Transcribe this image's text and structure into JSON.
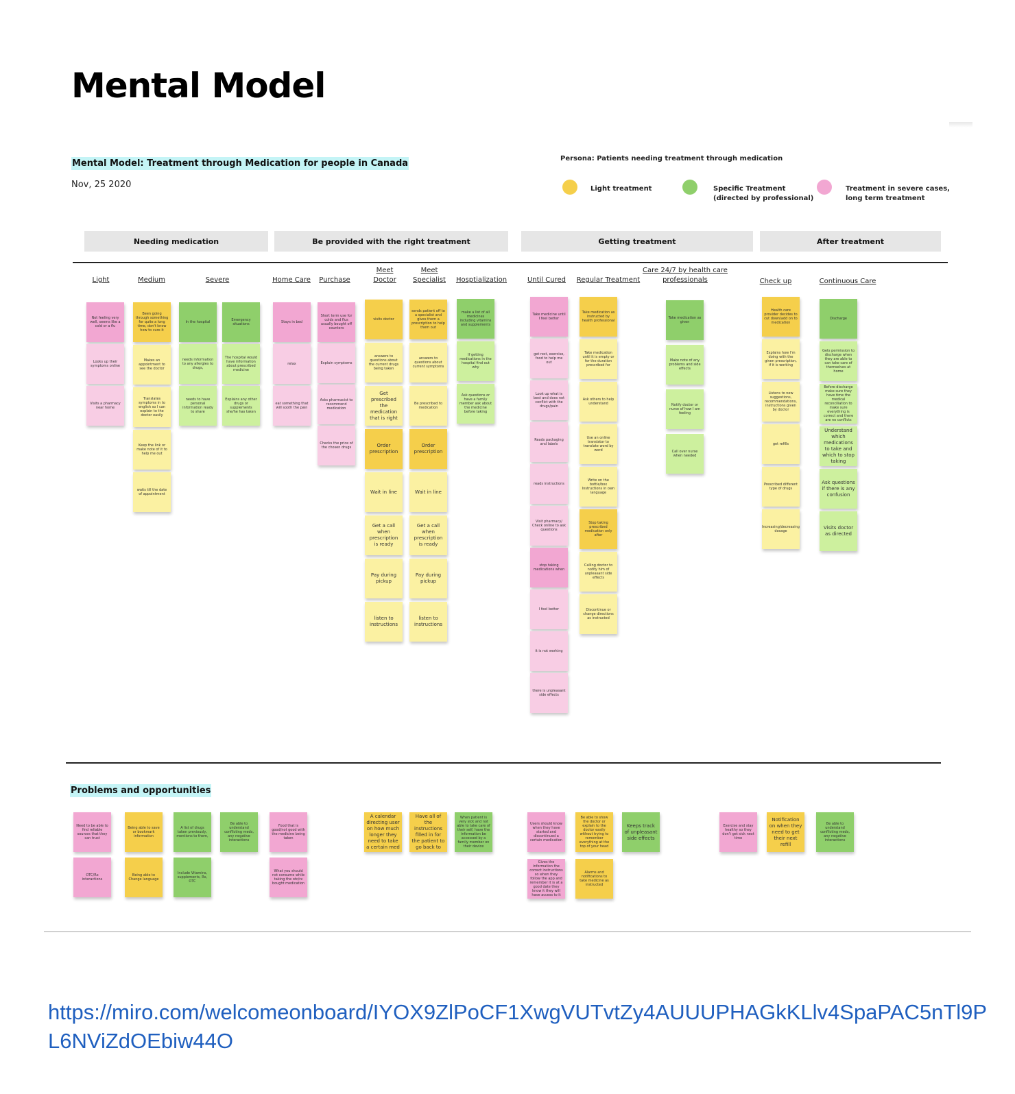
{
  "page_title": "Mental Model",
  "board": {
    "title": "Mental Model: Treatment through Medication for people in Canada",
    "date": "Nov, 25 2020",
    "persona": "Persona: Patients needing treatment through medication",
    "legend": [
      {
        "label": "Light treatment",
        "color": "#f5cf4b"
      },
      {
        "label": "Specific Treatment\n(directed by professional)",
        "color": "#8fcf6b"
      },
      {
        "label": "Treatment in severe cases,\nlong term treatment",
        "color": "#f2a7d2"
      }
    ],
    "phases": [
      "Needing medication",
      "Be provided with the right treatment",
      "Getting treatment",
      "After treatment"
    ],
    "columns": [
      {
        "label": "Light",
        "notes": [
          {
            "c": "pink",
            "t": "Not feeling very well, seems like a cold or a flu"
          },
          {
            "c": "lpink",
            "t": "Looks up their symptoms online"
          },
          {
            "c": "lpink",
            "t": "Visits a pharmacy near home"
          }
        ]
      },
      {
        "label": "Medium",
        "notes": [
          {
            "c": "yellow",
            "t": "Been going through something for quite a long time, don't know how to cure it"
          },
          {
            "c": "lyellow",
            "t": "Makes an appointment to see the doctor"
          },
          {
            "c": "lyellow",
            "t": "Translates symptoms in to english so I can explain to the doctor easily"
          },
          {
            "c": "lyellow",
            "t": "Keep the link or make note of it to help me out"
          },
          {
            "c": "lyellow",
            "t": "waits till the date of appointment"
          }
        ]
      },
      {
        "label": "Severe",
        "notes": [
          {
            "c": "green",
            "t": "In the hospital"
          },
          {
            "c": "lgreen",
            "t": "needs information to any allergies to drugs,"
          },
          {
            "c": "lgreen",
            "t": "needs to have personal information ready to share"
          }
        ]
      },
      {
        "label": "",
        "notes": [
          {
            "c": "green",
            "t": "Emergency situations"
          },
          {
            "c": "lgreen",
            "t": "The hospital would have information about prescribed medicine"
          },
          {
            "c": "lgreen",
            "t": "Explains any other drugs or supplements she/he has taken"
          }
        ]
      },
      {
        "label": "Home Care",
        "notes": [
          {
            "c": "pink",
            "t": "Stays in bed"
          },
          {
            "c": "lpink",
            "t": "relax"
          },
          {
            "c": "lpink",
            "t": "eat something that will sooth the pain"
          }
        ]
      },
      {
        "label": "Purchase",
        "notes": [
          {
            "c": "pink",
            "t": "Short term use for colds and flus usually bought off counters"
          },
          {
            "c": "lpink",
            "t": "Explain symptoms"
          },
          {
            "c": "lpink",
            "t": "Asks pharmacist to recommend medication"
          },
          {
            "c": "lpink",
            "t": "Checks the price of the chosen drugs"
          }
        ]
      },
      {
        "label": "Meet\nDoctor",
        "notes": [
          {
            "c": "yellow",
            "t": "visits doctor"
          },
          {
            "c": "lyellow",
            "t": "answers to questions about the current drugs being taken"
          },
          {
            "c": "lyellow",
            "t": "Get prescribed the medication that is right",
            "big": true
          },
          {
            "c": "yellow",
            "t": "Order prescription",
            "big": true
          },
          {
            "c": "lyellow",
            "t": "Wait in line",
            "big": true
          },
          {
            "c": "lyellow",
            "t": "Get a call when prescription is ready",
            "big": true
          },
          {
            "c": "lyellow",
            "t": "Pay during pickup",
            "big": true
          },
          {
            "c": "lyellow",
            "t": "listen to instructions",
            "big": true
          }
        ]
      },
      {
        "label": "Meet\nSpecialist",
        "notes": [
          {
            "c": "yellow",
            "t": "sends patient off to a specialist and gives them a prescription to help them out"
          },
          {
            "c": "lyellow",
            "t": "answers to questions about current symptoms"
          },
          {
            "c": "lyellow",
            "t": "Be prescribed to medication"
          },
          {
            "c": "yellow",
            "t": "Order prescription",
            "big": true
          },
          {
            "c": "lyellow",
            "t": "Wait in line",
            "big": true
          },
          {
            "c": "lyellow",
            "t": "Get a call when prescription is ready",
            "big": true
          },
          {
            "c": "lyellow",
            "t": "Pay during pickup",
            "big": true
          },
          {
            "c": "lyellow",
            "t": "listen to instructions",
            "big": true
          }
        ]
      },
      {
        "label": "Hosptialization",
        "notes": [
          {
            "c": "green",
            "t": "make a list of all medicines including vitamins and supplements"
          },
          {
            "c": "lgreen",
            "t": "If getting medications in the hospital find out why"
          },
          {
            "c": "lgreen",
            "t": "Ask questions or have a family member ask about the medicine before taking"
          }
        ]
      },
      {
        "label": "Until Cured",
        "notes": [
          {
            "c": "pink",
            "t": "Take medicine until I feel better"
          },
          {
            "c": "lpink",
            "t": "get rest, exercise, food to help me out"
          },
          {
            "c": "lpink",
            "t": "Look up what is best and does not conflict with the drugs/pain"
          },
          {
            "c": "lpink",
            "t": "Reads packaging and labels"
          },
          {
            "c": "lpink",
            "t": "reads instructions"
          },
          {
            "c": "lpink",
            "t": "Visit pharmacy/ Check online to ask questions"
          },
          {
            "c": "pink",
            "t": "stop taking medications when"
          },
          {
            "c": "lpink",
            "t": "I feel better"
          },
          {
            "c": "lpink",
            "t": "it is not working"
          },
          {
            "c": "lpink",
            "t": "there is unpleasant side effects"
          }
        ]
      },
      {
        "label": "Regular Treatment",
        "notes": [
          {
            "c": "yellow",
            "t": "Take medication as instructed by health professional"
          },
          {
            "c": "lyellow",
            "t": "Take medication until it is empty or for the duration prescribed for"
          },
          {
            "c": "lyellow",
            "t": "Ask others to help understand"
          },
          {
            "c": "lyellow",
            "t": "Use an online translator to translate word by word"
          },
          {
            "c": "lyellow",
            "t": "Write on the bottle/box Instructions in own language"
          },
          {
            "c": "yellow",
            "t": "Stop taking prescribed medication only after"
          },
          {
            "c": "lyellow",
            "t": "Calling doctor to notify him of unpleasant side effects"
          },
          {
            "c": "lyellow",
            "t": "Discontinue or change directions as instructed"
          }
        ]
      },
      {
        "label": "Care 24/7 by health care\nprofessionals",
        "notes": [
          {
            "c": "green",
            "t": "Take medication as given"
          },
          {
            "c": "lgreen",
            "t": "Make note of any problems and side effects"
          },
          {
            "c": "lgreen",
            "t": "Notify doctor or nurse of how I am feeling"
          },
          {
            "c": "lgreen",
            "t": "Call over nurse when needed"
          }
        ]
      },
      {
        "label": "Check up",
        "notes": [
          {
            "c": "yellow",
            "t": "Health care provider decides to cut down/add on to medication"
          },
          {
            "c": "lyellow",
            "t": "Explains how I'm doing with the given prescription, if it is working"
          },
          {
            "c": "lyellow",
            "t": "Listens to new suggestions, recommendations, instructions given by doctor"
          },
          {
            "c": "lyellow",
            "t": "get refills"
          },
          {
            "c": "lyellow",
            "t": "Prescribed different type of drugs"
          },
          {
            "c": "lyellow",
            "t": "Increasing/decreasing dosage"
          }
        ]
      },
      {
        "label": "Continuous Care",
        "notes": [
          {
            "c": "green",
            "t": "Discharge"
          },
          {
            "c": "lgreen",
            "t": "Gets permission to discharge when they are able to can take care of themselves at home"
          },
          {
            "c": "lgreen",
            "t": "Before discharge make sure they have time the medical reconciliation to make sure everything is correct and there are no conflicts"
          },
          {
            "c": "lgreen",
            "t": "Understand which medications to take and which to stop taking",
            "big": true
          },
          {
            "c": "lgreen",
            "t": "Ask questions if there is any confusion",
            "big": true
          },
          {
            "c": "lgreen",
            "t": "Visits doctor as directed",
            "big": true
          }
        ]
      }
    ],
    "problems_title": "Problems and opportunities",
    "problems": [
      {
        "c": "pink",
        "t": "Need to be able to find reliable sources that they can trust"
      },
      {
        "c": "pink",
        "t": "OTC/Rx interactions"
      },
      {
        "c": "yellow",
        "t": "Being able to save or bookmark information"
      },
      {
        "c": "yellow",
        "t": "Being able to Change language"
      },
      {
        "c": "green",
        "t": "A list of drugs taken previously, mentions to them,"
      },
      {
        "c": "green",
        "t": "Include Vitamins, supplements, Rx, OTC"
      },
      {
        "c": "green",
        "t": "Be able to understand conflicting meds, any negative interactions"
      },
      {
        "c": "pink",
        "t": "Food that is good/not good with the medicine being taken"
      },
      {
        "c": "pink",
        "t": "What you should not consume while taking the otc/rx bought medication"
      },
      {
        "c": "yellow",
        "t": "A calendar directing user on how much longer they need to take a certain med",
        "big": true
      },
      {
        "c": "yellow",
        "t": "Have all of the instructions filled in for the patient to go back to",
        "big": true
      },
      {
        "c": "green",
        "t": "When patient is very sick and not able to take care of their self, have the information be accessed by a family member on their device"
      },
      {
        "c": "pink",
        "t": "Users should know when they have started and discontinued a certain medication"
      },
      {
        "c": "pink",
        "t": "Gives the information the correct instructions so when they follow the app and remember it is at a good date they know it they will have access to it"
      },
      {
        "c": "yellow",
        "t": "Be able to show the doctor or explain to the doctor easily without trying to remember everything at the top of your head"
      },
      {
        "c": "yellow",
        "t": "Alarms and notifications to take medicine as instructed"
      },
      {
        "c": "green",
        "t": "Keeps track of unpleasant side effects",
        "big": true
      },
      {
        "c": "pink",
        "t": "Exercise and stay healthy so they don't get sick next time"
      },
      {
        "c": "yellow",
        "t": "Notification on when they need to get their next refill",
        "big": true
      },
      {
        "c": "green",
        "t": "Be able to understand conflicting meds, any negative interactions"
      }
    ]
  },
  "url": "https://miro.com/welcomeonboard/IYOX9ZlPoCF1XwgVUTvtZy4AUUUPHAGkKLlv4SpaPAC5nTl9PL6NViZdOEbiw44O"
}
